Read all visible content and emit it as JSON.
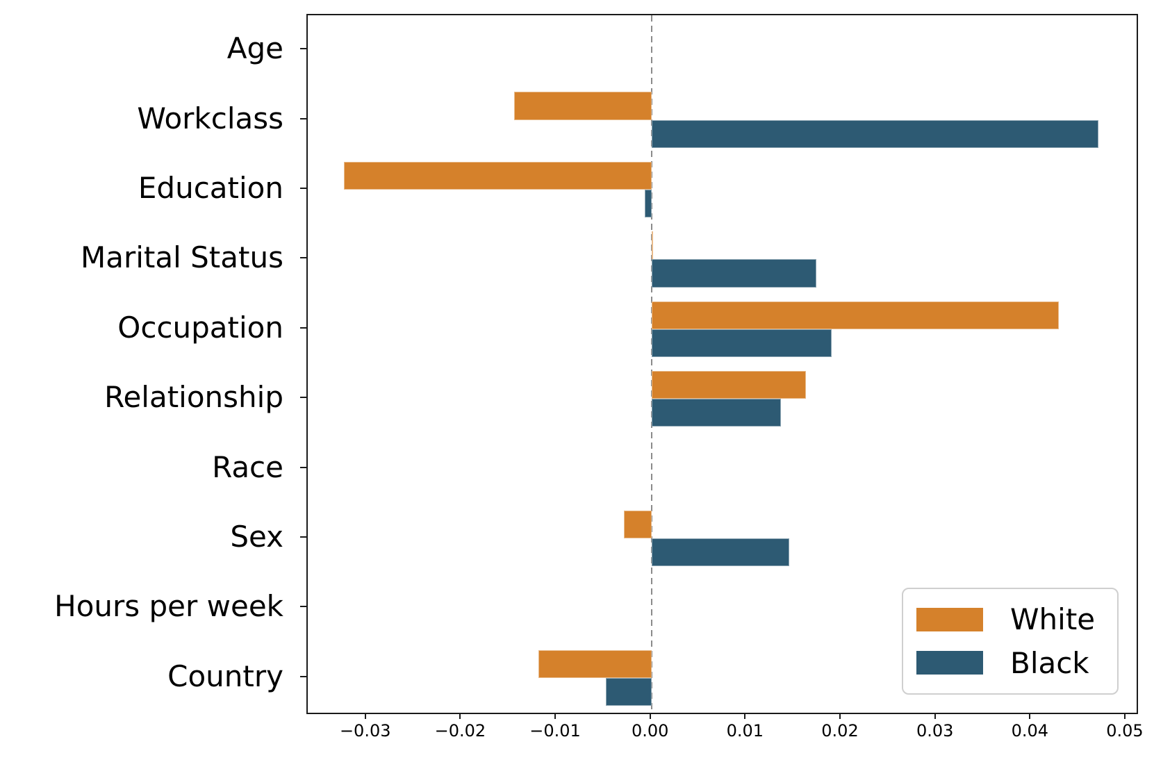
{
  "figure": {
    "background": "#ffffff",
    "spine_color": "#1a1a1a",
    "zero_line_color": "#8a8a8a"
  },
  "chart_data": {
    "type": "bar",
    "orientation": "horizontal",
    "title": "",
    "xlabel": "",
    "ylabel": "",
    "grid": false,
    "zero_line": true,
    "categories": [
      "Age",
      "Workclass",
      "Education",
      "Marital Status",
      "Occupation",
      "Relationship",
      "Race",
      "Sex",
      "Hours per week",
      "Country"
    ],
    "series": [
      {
        "name": "White",
        "color": "#D5812B",
        "values": [
          0,
          -0.0145,
          -0.0324,
          0.0002,
          0.0429,
          0.0163,
          0,
          -0.0029,
          0,
          -0.0119
        ]
      },
      {
        "name": "Black",
        "color": "#2D5A73",
        "values": [
          0,
          0.0471,
          -0.0007,
          0.0174,
          0.019,
          0.0136,
          0,
          0.0145,
          0,
          -0.0048
        ]
      }
    ],
    "xlim": [
      -0.0362,
      0.0511
    ],
    "xticks": [
      {
        "value": -0.03,
        "label": "−0.03"
      },
      {
        "value": -0.02,
        "label": "−0.02"
      },
      {
        "value": -0.01,
        "label": "−0.01"
      },
      {
        "value": 0.0,
        "label": "0.00"
      },
      {
        "value": 0.01,
        "label": "0.01"
      },
      {
        "value": 0.02,
        "label": "0.02"
      },
      {
        "value": 0.03,
        "label": "0.03"
      },
      {
        "value": 0.04,
        "label": "0.04"
      },
      {
        "value": 0.05,
        "label": "0.05"
      }
    ],
    "legend": {
      "position": "lower right",
      "entries": [
        "White",
        "Black"
      ]
    }
  }
}
